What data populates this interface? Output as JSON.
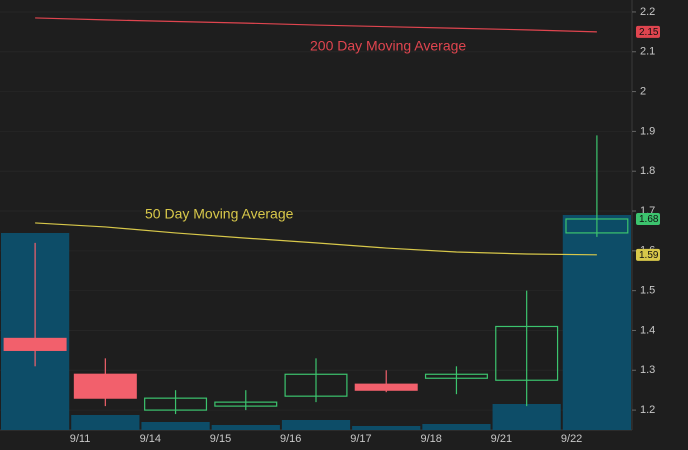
{
  "chart_data": {
    "type": "candlestick",
    "categories": [
      null,
      "9/11",
      "9/14",
      "9/15",
      "9/16",
      "9/17",
      "9/18",
      "9/21",
      "9/22"
    ],
    "open": [
      1.38,
      1.29,
      1.2,
      1.21,
      1.235,
      1.265,
      1.28,
      1.275,
      1.645
    ],
    "high": [
      1.62,
      1.33,
      1.25,
      1.25,
      1.33,
      1.3,
      1.31,
      1.5,
      1.89
    ],
    "low": [
      1.31,
      1.21,
      1.19,
      1.2,
      1.22,
      1.245,
      1.24,
      1.21,
      1.635
    ],
    "close": [
      1.35,
      1.23,
      1.23,
      1.22,
      1.29,
      1.25,
      1.29,
      1.41,
      1.68
    ],
    "up_color": "#3cc46e",
    "down_color": "#f2606c",
    "volume": {
      "values": [
        197,
        15,
        8,
        5,
        10,
        4,
        6,
        26,
        215
      ],
      "color": "#0d4d68",
      "lim": [
        0,
        430
      ]
    },
    "series": [
      {
        "name": "200 Day Moving Average",
        "color": "#e0454f",
        "values": [
          2.185,
          2.18,
          2.176,
          2.172,
          2.167,
          2.163,
          2.159,
          2.155,
          2.15
        ]
      },
      {
        "name": "50 Day Moving Average",
        "color": "#d8c84a",
        "values": [
          1.67,
          1.66,
          1.645,
          1.632,
          1.62,
          1.607,
          1.597,
          1.592,
          1.59
        ]
      }
    ],
    "ylim": [
      1.15,
      2.23
    ],
    "yticks": [
      1.2,
      1.3,
      1.4,
      1.5,
      1.6,
      1.7,
      1.8,
      1.9,
      2,
      2.1,
      2.2
    ],
    "grid": true
  }
}
